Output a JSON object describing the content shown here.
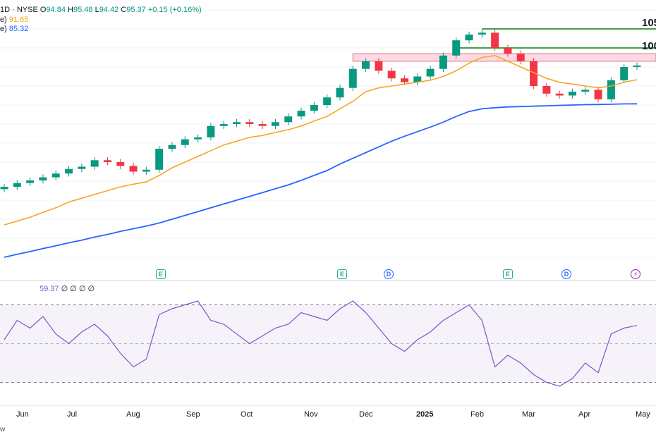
{
  "header": {
    "symbol_line": "1D · NYSE",
    "ohlc": {
      "O": "94.84",
      "H": "95.48",
      "L": "94.42",
      "C": "95.37",
      "change": "+0.15 (+0.16%)"
    },
    "ma50_label": "e)",
    "ma50_value": "91.65",
    "ma200_label": "e)",
    "ma200_value": "85.32",
    "rsi_value": "59.37",
    "rsi_extra": "∅ ∅ ∅ ∅"
  },
  "levels": {
    "l1": "105",
    "l2": "100"
  },
  "footer_text": "w",
  "events": [
    {
      "kind": "e",
      "glyph": "E",
      "name": "earnings-icon"
    },
    {
      "kind": "e",
      "glyph": "E",
      "name": "earnings-icon"
    },
    {
      "kind": "d",
      "glyph": "D",
      "name": "dividend-icon"
    },
    {
      "kind": "e",
      "glyph": "E",
      "name": "earnings-icon"
    },
    {
      "kind": "d",
      "glyph": "D",
      "name": "dividend-icon"
    },
    {
      "kind": "s",
      "glyph": "⚡",
      "name": "split-icon"
    }
  ],
  "colors": {
    "up": "#089981",
    "down": "#f23645",
    "ma50": "#f5a623",
    "ma200": "#2962ff",
    "rsi": "#7e57c2",
    "support": "#4caf50",
    "zone": "#f8bbd0"
  },
  "chart_data": {
    "type": "line",
    "x": [
      "2024-05-21",
      "2024-05-28",
      "2024-06-04",
      "2024-06-11",
      "2024-06-18",
      "2024-06-25",
      "2024-07-02",
      "2024-07-09",
      "2024-07-16",
      "2024-07-23",
      "2024-07-30",
      "2024-08-06",
      "2024-08-13",
      "2024-08-20",
      "2024-08-27",
      "2024-09-03",
      "2024-09-10",
      "2024-09-17",
      "2024-09-24",
      "2024-10-01",
      "2024-10-08",
      "2024-10-15",
      "2024-10-22",
      "2024-10-29",
      "2024-11-05",
      "2024-11-12",
      "2024-11-19",
      "2024-11-26",
      "2024-12-03",
      "2024-12-10",
      "2024-12-17",
      "2024-12-24",
      "2024-12-31",
      "2025-01-07",
      "2025-01-14",
      "2025-01-21",
      "2025-01-28",
      "2025-02-04",
      "2025-02-11",
      "2025-02-18",
      "2025-02-25",
      "2025-03-04",
      "2025-03-11",
      "2025-03-18",
      "2025-03-25",
      "2025-04-01",
      "2025-04-08",
      "2025-04-15",
      "2025-04-22",
      "2025-04-28"
    ],
    "months": [
      "Jun",
      "Jul",
      "Aug",
      "Sep",
      "Oct",
      "Nov",
      "Dec",
      "2025",
      "Feb",
      "Mar",
      "Apr",
      "May"
    ],
    "series": [
      {
        "values": [
          63.5,
          64.5,
          65.2,
          66.0,
          67.0,
          68.2,
          68.8,
          70.5,
          70.0,
          69.0,
          67.5,
          68.0,
          73.5,
          74.5,
          76.0,
          76.5,
          79.5,
          80.0,
          80.5,
          80.0,
          79.5,
          80.5,
          82.0,
          83.5,
          85.0,
          87.0,
          89.5,
          94.5,
          96.5,
          94.0,
          92.0,
          91.0,
          92.5,
          94.5,
          98.0,
          102.0,
          103.5,
          104.0,
          100.0,
          98.5,
          96.5,
          90.0,
          88.0,
          87.5,
          88.5,
          89.0,
          86.5,
          91.5,
          95.0,
          95.37
        ]
      },
      {
        "values": [
          53.5,
          54.5,
          55.5,
          56.8,
          58.0,
          59.5,
          60.5,
          61.5,
          62.5,
          63.5,
          64.2,
          64.8,
          66.5,
          68.5,
          70.0,
          71.5,
          73.0,
          74.5,
          75.5,
          76.5,
          77.0,
          77.8,
          78.5,
          79.5,
          80.8,
          82.0,
          84.0,
          86.0,
          88.5,
          89.5,
          90.0,
          90.5,
          91.0,
          91.5,
          92.5,
          94.0,
          96.0,
          97.5,
          98.0,
          96.5,
          95.0,
          93.5,
          92.0,
          91.0,
          90.5,
          90.0,
          89.5,
          90.0,
          91.0,
          91.65
        ]
      },
      {
        "values": [
          45.0,
          45.8,
          46.5,
          47.3,
          48.0,
          48.8,
          49.5,
          50.3,
          51.0,
          51.8,
          52.5,
          53.2,
          54.0,
          55.0,
          56.0,
          57.0,
          58.0,
          59.0,
          60.0,
          61.0,
          62.0,
          63.0,
          64.0,
          65.2,
          66.5,
          67.8,
          69.5,
          71.0,
          72.5,
          74.0,
          75.5,
          76.8,
          78.0,
          79.2,
          80.5,
          82.0,
          83.3,
          84.0,
          84.3,
          84.5,
          84.6,
          84.7,
          84.8,
          84.9,
          85.0,
          85.1,
          85.15,
          85.2,
          85.3,
          85.32
        ]
      }
    ],
    "rsi": [
      52,
      62,
      58,
      64,
      55,
      50,
      56,
      60,
      54,
      45,
      38,
      42,
      65,
      68,
      70,
      72,
      62,
      60,
      55,
      50,
      54,
      58,
      60,
      66,
      64,
      62,
      68,
      72,
      66,
      58,
      50,
      46,
      52,
      56,
      62,
      66,
      70,
      62,
      38,
      44,
      40,
      34,
      30,
      28,
      32,
      40,
      35,
      55,
      58,
      59.37
    ],
    "rsi_bands": {
      "upper": 70,
      "middle": 50,
      "lower": 30
    },
    "ylim": [
      40,
      110
    ],
    "rsi_ylim": [
      20,
      80
    ],
    "resistance_zone": [
      96.5,
      98.5
    ],
    "horizontal_levels": [
      {
        "value": 105
      },
      {
        "value": 100
      }
    ]
  }
}
